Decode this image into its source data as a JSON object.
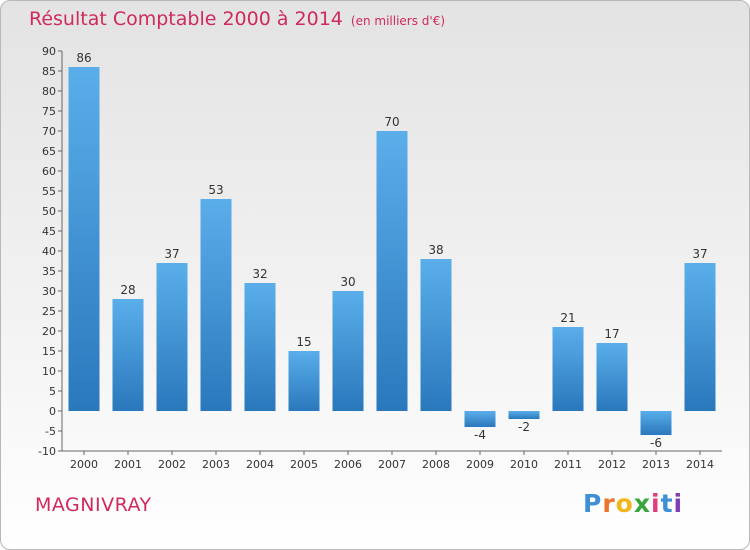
{
  "title": "Résultat Comptable 2000 à 2014",
  "subtitle": "(en milliers d'€)",
  "location": "MAGNIVRAY",
  "logo_letters": [
    "P",
    "r",
    "o",
    "x",
    "i",
    "t",
    "i"
  ],
  "colors": {
    "accent": "#cf2a5b",
    "bar_top": "#5aaeea",
    "bar_bottom": "#2a78bc"
  },
  "chart_data": {
    "type": "bar",
    "categories": [
      "2000",
      "2001",
      "2002",
      "2003",
      "2004",
      "2005",
      "2006",
      "2007",
      "2008",
      "2009",
      "2010",
      "2011",
      "2012",
      "2013",
      "2014"
    ],
    "values": [
      86,
      28,
      37,
      53,
      32,
      15,
      30,
      70,
      38,
      -4,
      -2,
      21,
      17,
      -6,
      37
    ],
    "ylim": [
      -10,
      90
    ],
    "ytick_step": 5,
    "grid": false,
    "data_labels": true
  }
}
